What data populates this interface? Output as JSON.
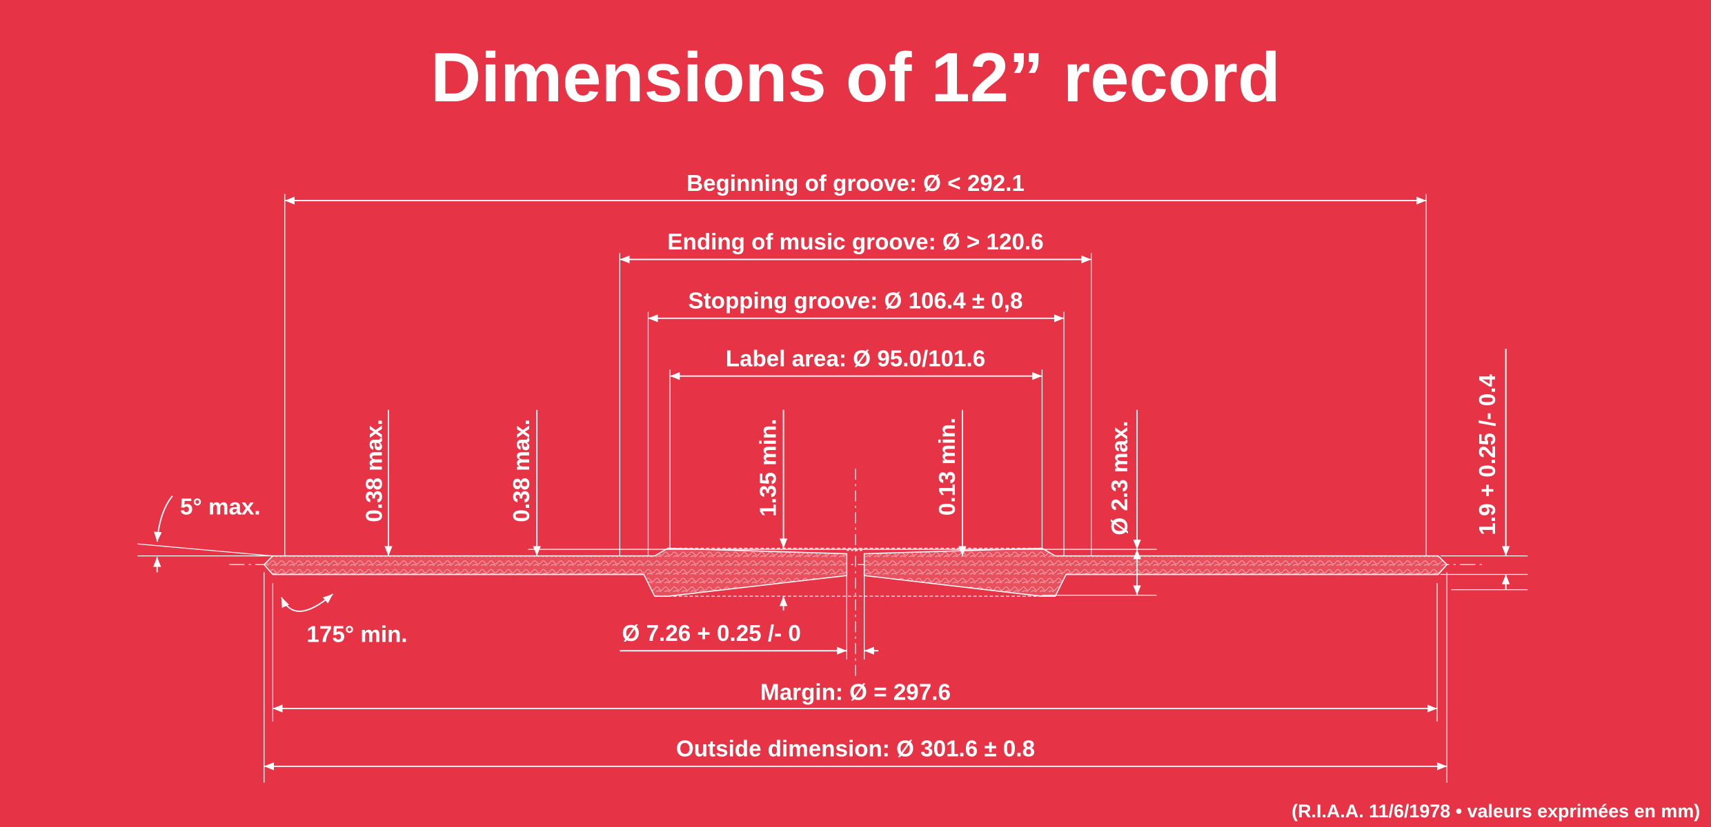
{
  "title": "Dimensions of 12” record",
  "annotations": [
    "Beginning of groove: Ø < 292.1",
    "Ending of music groove: Ø > 120.6",
    "Stopping groove: Ø 106.4 ± 0,8",
    "Label area: Ø 95.0/101.6",
    "0.38 max.",
    "0.38 max.",
    "1.35 min.",
    "0.13 min.",
    "Ø 2.3 max.",
    "1.9 + 0.25 /- 0.4",
    "5° max.",
    "175° min.",
    "Ø 7.26 + 0.25 /- 0",
    "Margin: Ø = 297.6",
    "Outside dimension: Ø 301.6 ± 0.8"
  ],
  "footnote": "(R.I.A.A. 11/6/1978 • valeurs exprimées en mm)"
}
